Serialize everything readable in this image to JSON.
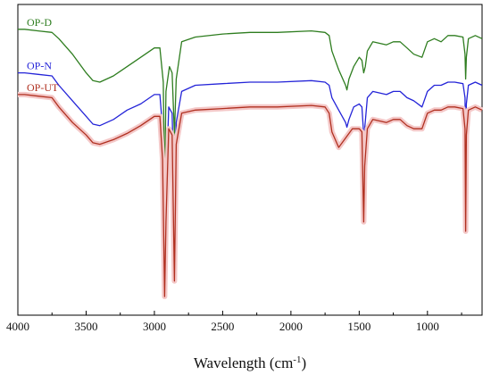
{
  "chart_data": {
    "type": "line",
    "title": "",
    "xlabel": "Wavelength (cm",
    "xlabel_sup": "-1",
    "xlabel_end": ")",
    "ylabel": "",
    "xlim": [
      4000,
      600
    ],
    "x_ticks": [
      "4000",
      "3500",
      "3000",
      "2500",
      "2000",
      "1500",
      "1000"
    ],
    "x_tick_values": [
      4000,
      3500,
      3000,
      2500,
      2000,
      1500,
      1000
    ],
    "ylim": [
      0,
      100
    ],
    "grid": false,
    "legend_placement": "inline-left",
    "series": [
      {
        "name": "OP-D",
        "color": "#2e7d1f",
        "points": [
          [
            4000,
            92
          ],
          [
            3950,
            92
          ],
          [
            3850,
            91.5
          ],
          [
            3750,
            91
          ],
          [
            3700,
            89
          ],
          [
            3600,
            84
          ],
          [
            3500,
            78
          ],
          [
            3450,
            75.5
          ],
          [
            3400,
            75
          ],
          [
            3300,
            77
          ],
          [
            3200,
            80
          ],
          [
            3100,
            83
          ],
          [
            3000,
            86
          ],
          [
            2960,
            86
          ],
          [
            2935,
            75
          ],
          [
            2925,
            40
          ],
          [
            2915,
            72
          ],
          [
            2890,
            80
          ],
          [
            2870,
            78
          ],
          [
            2853,
            58
          ],
          [
            2840,
            76
          ],
          [
            2800,
            88
          ],
          [
            2700,
            89.5
          ],
          [
            2500,
            90.5
          ],
          [
            2300,
            91
          ],
          [
            2100,
            91
          ],
          [
            1850,
            91.5
          ],
          [
            1750,
            91
          ],
          [
            1720,
            90
          ],
          [
            1700,
            85
          ],
          [
            1650,
            79
          ],
          [
            1600,
            74
          ],
          [
            1590,
            72.5
          ],
          [
            1575,
            76
          ],
          [
            1540,
            80
          ],
          [
            1500,
            83
          ],
          [
            1480,
            82
          ],
          [
            1467,
            78
          ],
          [
            1455,
            80
          ],
          [
            1440,
            85
          ],
          [
            1400,
            88
          ],
          [
            1300,
            87
          ],
          [
            1250,
            88
          ],
          [
            1200,
            88
          ],
          [
            1150,
            86
          ],
          [
            1100,
            84
          ],
          [
            1040,
            83
          ],
          [
            1000,
            88
          ],
          [
            950,
            89
          ],
          [
            900,
            88
          ],
          [
            850,
            90
          ],
          [
            800,
            90
          ],
          [
            740,
            89.5
          ],
          [
            725,
            84
          ],
          [
            720,
            76
          ],
          [
            715,
            83
          ],
          [
            700,
            89
          ],
          [
            650,
            90
          ],
          [
            600,
            89
          ]
        ]
      },
      {
        "name": "OP-N",
        "color": "#2424d8",
        "points": [
          [
            4000,
            78
          ],
          [
            3950,
            78
          ],
          [
            3850,
            77.5
          ],
          [
            3750,
            77
          ],
          [
            3700,
            74
          ],
          [
            3600,
            69
          ],
          [
            3500,
            64
          ],
          [
            3450,
            61.5
          ],
          [
            3400,
            61
          ],
          [
            3300,
            63
          ],
          [
            3200,
            66
          ],
          [
            3100,
            68
          ],
          [
            3000,
            71
          ],
          [
            2960,
            71
          ],
          [
            2940,
            60
          ],
          [
            2925,
            28
          ],
          [
            2915,
            40
          ],
          [
            2895,
            67
          ],
          [
            2870,
            65
          ],
          [
            2853,
            34
          ],
          [
            2840,
            62
          ],
          [
            2800,
            72
          ],
          [
            2700,
            74
          ],
          [
            2500,
            74.5
          ],
          [
            2300,
            75
          ],
          [
            2100,
            75
          ],
          [
            1850,
            75.5
          ],
          [
            1750,
            75
          ],
          [
            1720,
            74
          ],
          [
            1700,
            70
          ],
          [
            1650,
            66
          ],
          [
            1600,
            62
          ],
          [
            1590,
            60.5
          ],
          [
            1575,
            63
          ],
          [
            1540,
            67
          ],
          [
            1500,
            68
          ],
          [
            1480,
            67
          ],
          [
            1467,
            58
          ],
          [
            1460,
            60
          ],
          [
            1440,
            70
          ],
          [
            1400,
            72
          ],
          [
            1300,
            71
          ],
          [
            1250,
            72
          ],
          [
            1200,
            72
          ],
          [
            1150,
            70
          ],
          [
            1100,
            69
          ],
          [
            1040,
            67
          ],
          [
            1000,
            72
          ],
          [
            950,
            74
          ],
          [
            900,
            74
          ],
          [
            850,
            75
          ],
          [
            800,
            75
          ],
          [
            740,
            74.5
          ],
          [
            725,
            70
          ],
          [
            720,
            54
          ],
          [
            715,
            68
          ],
          [
            700,
            74
          ],
          [
            650,
            75
          ],
          [
            600,
            74
          ]
        ]
      },
      {
        "name": "OP-UT",
        "color": "#b03020",
        "points": [
          [
            4000,
            71
          ],
          [
            3950,
            71
          ],
          [
            3850,
            70.5
          ],
          [
            3750,
            70
          ],
          [
            3700,
            67
          ],
          [
            3600,
            62
          ],
          [
            3500,
            58
          ],
          [
            3450,
            55.5
          ],
          [
            3400,
            55
          ],
          [
            3300,
            56.5
          ],
          [
            3200,
            58.5
          ],
          [
            3100,
            61
          ],
          [
            3000,
            64
          ],
          [
            2960,
            64
          ],
          [
            2940,
            50
          ],
          [
            2925,
            6
          ],
          [
            2915,
            30
          ],
          [
            2895,
            60
          ],
          [
            2870,
            58
          ],
          [
            2853,
            11
          ],
          [
            2840,
            55
          ],
          [
            2800,
            65
          ],
          [
            2700,
            66
          ],
          [
            2500,
            66.5
          ],
          [
            2300,
            67
          ],
          [
            2100,
            67
          ],
          [
            1850,
            67.5
          ],
          [
            1750,
            67
          ],
          [
            1720,
            65
          ],
          [
            1700,
            59
          ],
          [
            1650,
            54
          ],
          [
            1600,
            57
          ],
          [
            1550,
            60
          ],
          [
            1500,
            60
          ],
          [
            1480,
            59
          ],
          [
            1467,
            30
          ],
          [
            1460,
            48
          ],
          [
            1440,
            60
          ],
          [
            1400,
            63
          ],
          [
            1300,
            62
          ],
          [
            1250,
            63
          ],
          [
            1200,
            63
          ],
          [
            1150,
            61
          ],
          [
            1100,
            60
          ],
          [
            1040,
            60
          ],
          [
            1000,
            65
          ],
          [
            950,
            66
          ],
          [
            900,
            66
          ],
          [
            850,
            67
          ],
          [
            800,
            67
          ],
          [
            740,
            66.5
          ],
          [
            725,
            60
          ],
          [
            720,
            27
          ],
          [
            715,
            58
          ],
          [
            700,
            66
          ],
          [
            650,
            67
          ],
          [
            600,
            66
          ]
        ]
      }
    ]
  }
}
